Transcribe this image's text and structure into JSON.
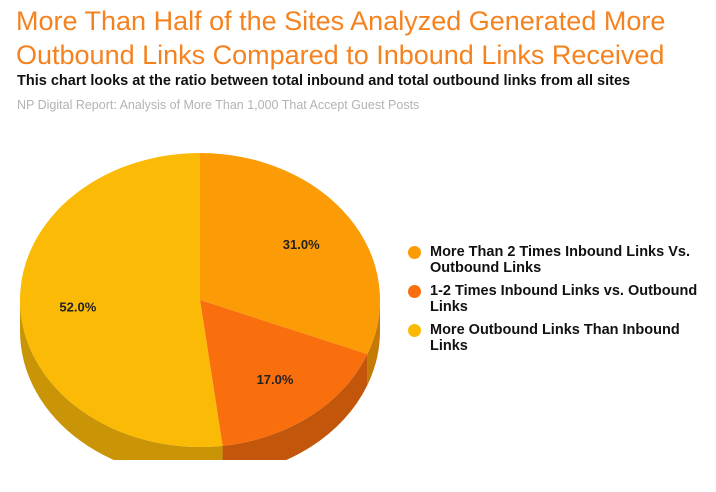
{
  "chart_data": {
    "type": "pie",
    "title": "More Than Half of the Sites Analyzed Generated More Outbound Links Compared to Inbound Links Received",
    "subtitle": "This chart looks at the ratio between total inbound and total outbound links from all sites",
    "source": "NP Digital Report: Analysis of More Than 1,000 That Accept Guest Posts",
    "legend_position": "right",
    "slices": [
      {
        "label": "More Than 2 Times Inbound Links Vs. Outbound Links",
        "value": 31.0,
        "value_label": "31.0%",
        "color": "#fb9b06",
        "side_color": "#c47a05"
      },
      {
        "label": "1-2 Times Inbound Links vs. Outbound Links",
        "value": 17.0,
        "value_label": "17.0%",
        "color": "#f96e0d",
        "side_color": "#c2560a"
      },
      {
        "label": "More Outbound Links Than Inbound Links",
        "value": 52.0,
        "value_label": "52.0%",
        "color": "#fbba05",
        "side_color": "#c99405"
      }
    ]
  }
}
